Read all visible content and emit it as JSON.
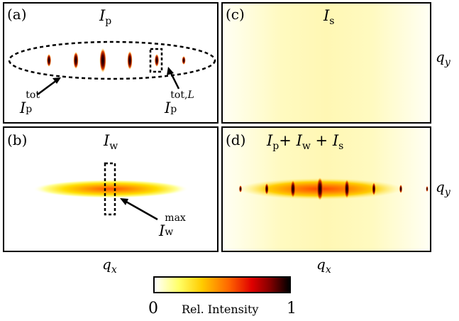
{
  "panels": {
    "a": {
      "label": "(a)",
      "title_main": "I",
      "title_sub": "p"
    },
    "b": {
      "label": "(b)",
      "title_main": "I",
      "title_sub": "w"
    },
    "c": {
      "label": "(c)",
      "title_main": "I",
      "title_sub": "s"
    },
    "d": {
      "label": "(d)",
      "t1_main": "I",
      "t1_sub": "p",
      "plus1": "+",
      "t2_main": "I",
      "t2_sub": "w",
      "plus2": "+",
      "t3_main": "I",
      "t3_sub": "s"
    }
  },
  "annotations": {
    "ptot": {
      "main": "I",
      "sup": "tot",
      "sub": "p"
    },
    "ptotL": {
      "main": "I",
      "sup_text": "tot,",
      "sup_italic": "L",
      "sub": "p"
    },
    "wmax": {
      "main": "I",
      "sup": "max",
      "sub": "w"
    }
  },
  "axes": {
    "qy_top": {
      "main": "q",
      "sub": "y"
    },
    "qy_bottom": {
      "main": "q",
      "sub": "y"
    },
    "qx_left": {
      "main": "q",
      "sub": "x"
    },
    "qx_right": {
      "main": "q",
      "sub": "x"
    }
  },
  "colorbar": {
    "min_label": "0",
    "title": "Rel. Intensity",
    "max_label": "1",
    "colormap": [
      "#ffffff",
      "#ffff66",
      "#ffcc00",
      "#ff6600",
      "#e00000",
      "#800000",
      "#000000"
    ]
  }
}
